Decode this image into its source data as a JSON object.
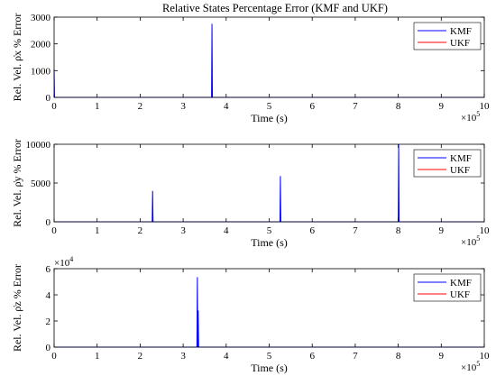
{
  "figure_title": "Relative States Percentage Error (KMF and UKF)",
  "colors": {
    "KMF": "#0000ff",
    "UKF": "#ff0000",
    "axes": "#000000",
    "background": "#ffffff"
  },
  "chart_data": [
    {
      "type": "line",
      "title": "Relative States Percentage Error (KMF and UKF)",
      "xlabel": "Time (s)",
      "ylabel": "Rel. Vel. ρ̇x % Error",
      "xlim": [
        0,
        1000000
      ],
      "ylim": [
        0,
        3000
      ],
      "x_multiplier": "×10^5",
      "y_multiplier": "",
      "xticks": [
        "0",
        "1",
        "2",
        "3",
        "4",
        "5",
        "6",
        "7",
        "8",
        "9",
        "10"
      ],
      "yticks": [
        "0",
        "1000",
        "2000",
        "3000"
      ],
      "legend": {
        "position": "top-right",
        "entries": [
          "KMF",
          "UKF"
        ]
      },
      "grid": false,
      "series": [
        {
          "name": "KMF",
          "x": [
            0,
            1000,
            2000,
            366000,
            367000,
            368000,
            1000000
          ],
          "y": [
            1050,
            0,
            0,
            0,
            2750,
            0,
            0
          ]
        },
        {
          "name": "UKF",
          "x": [
            0,
            1000000
          ],
          "y": [
            0,
            0
          ]
        }
      ]
    },
    {
      "type": "line",
      "title": "",
      "xlabel": "Time (s)",
      "ylabel": "Rel. Vel. ρ̇y % Error",
      "xlim": [
        0,
        1000000
      ],
      "ylim": [
        0,
        10500
      ],
      "x_multiplier": "×10^5",
      "y_multiplier": "",
      "xticks": [
        "0",
        "1",
        "2",
        "3",
        "4",
        "5",
        "6",
        "7",
        "8",
        "9",
        "10"
      ],
      "yticks": [
        "0",
        "5000",
        "10000"
      ],
      "legend": {
        "position": "top-right",
        "entries": [
          "KMF",
          "UKF"
        ]
      },
      "grid": false,
      "series": [
        {
          "name": "KMF",
          "x": [
            0,
            228000,
            229000,
            230000,
            525000,
            526000,
            527000,
            800000,
            801000,
            802000,
            1000000
          ],
          "y": [
            0,
            0,
            4200,
            0,
            0,
            6200,
            0,
            0,
            10500,
            0,
            0
          ]
        },
        {
          "name": "UKF",
          "x": [
            0,
            1000000
          ],
          "y": [
            0,
            0
          ]
        }
      ]
    },
    {
      "type": "line",
      "title": "",
      "xlabel": "Time (s)",
      "ylabel": "Rel. Vel. ρ̇z % Error",
      "xlim": [
        0,
        1000000
      ],
      "ylim": [
        0,
        60000
      ],
      "x_multiplier": "×10^5",
      "y_multiplier": "×10^4",
      "xticks": [
        "0",
        "1",
        "2",
        "3",
        "4",
        "5",
        "6",
        "7",
        "8",
        "9",
        "10"
      ],
      "yticks": [
        "0",
        "2",
        "4",
        "6"
      ],
      "legend": {
        "position": "top-right",
        "entries": [
          "KMF",
          "UKF"
        ]
      },
      "grid": false,
      "series": [
        {
          "name": "KMF",
          "x": [
            0,
            332000,
            333000,
            334000,
            335000,
            336000,
            1000000
          ],
          "y": [
            0,
            0,
            53500,
            0,
            28000,
            0,
            0
          ]
        },
        {
          "name": "UKF",
          "x": [
            0,
            1000000
          ],
          "y": [
            0,
            0
          ]
        }
      ]
    }
  ]
}
